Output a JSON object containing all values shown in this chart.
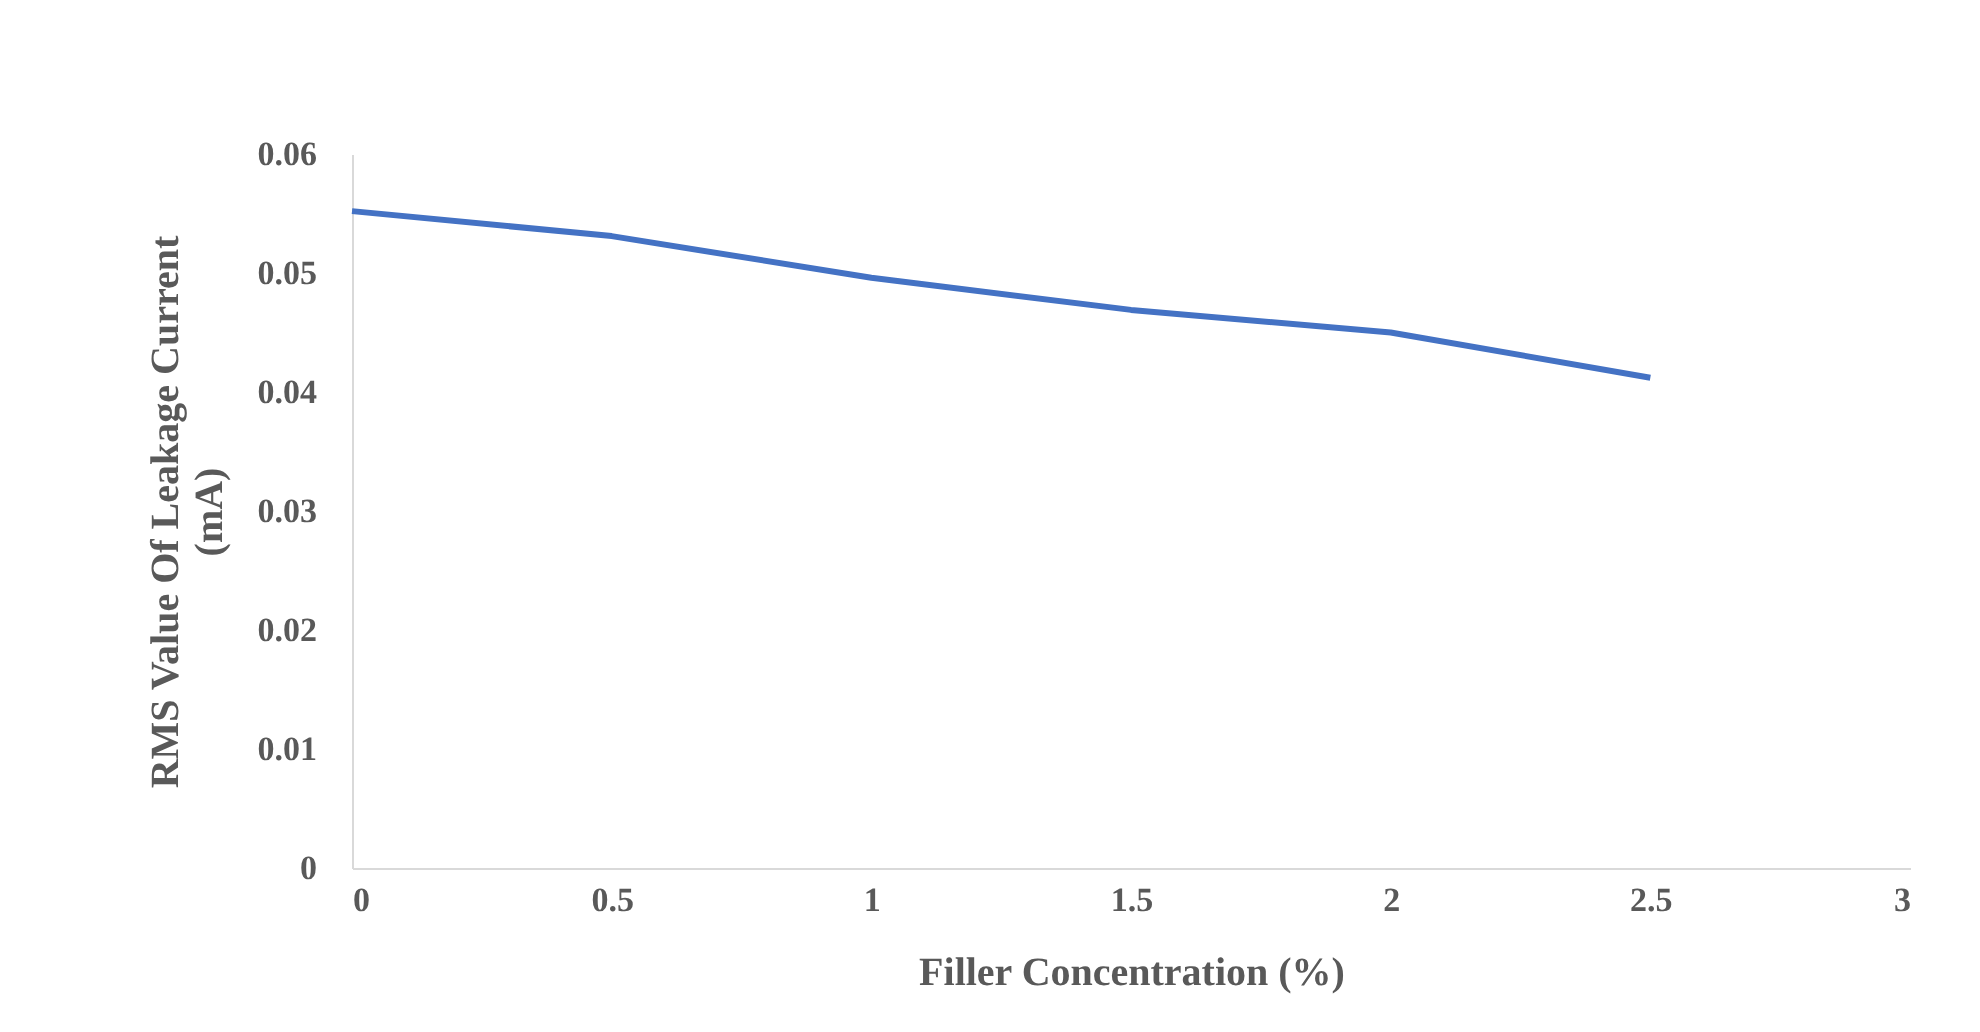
{
  "chart_data": {
    "type": "line",
    "xlabel": "Filler Concentration (%)",
    "ylabel": "RMS Value Of Leakage Current\n(mA)",
    "x": [
      0,
      0.5,
      1,
      1.5,
      2,
      2.5
    ],
    "series": [
      {
        "color": "#4472c4",
        "values": [
          0.0552,
          0.0531,
          0.0496,
          0.0469,
          0.045,
          0.0412
        ]
      }
    ],
    "xlim": [
      0,
      3
    ],
    "xticks": [
      0,
      0.5,
      1,
      1.5,
      2,
      2.5,
      3
    ],
    "ylim": [
      0,
      0.06
    ],
    "yticks": [
      0,
      0.01,
      0.02,
      0.03,
      0.04,
      0.05,
      0.06
    ],
    "grid": false,
    "legend": false,
    "marker": "none",
    "line_style": "solid"
  }
}
